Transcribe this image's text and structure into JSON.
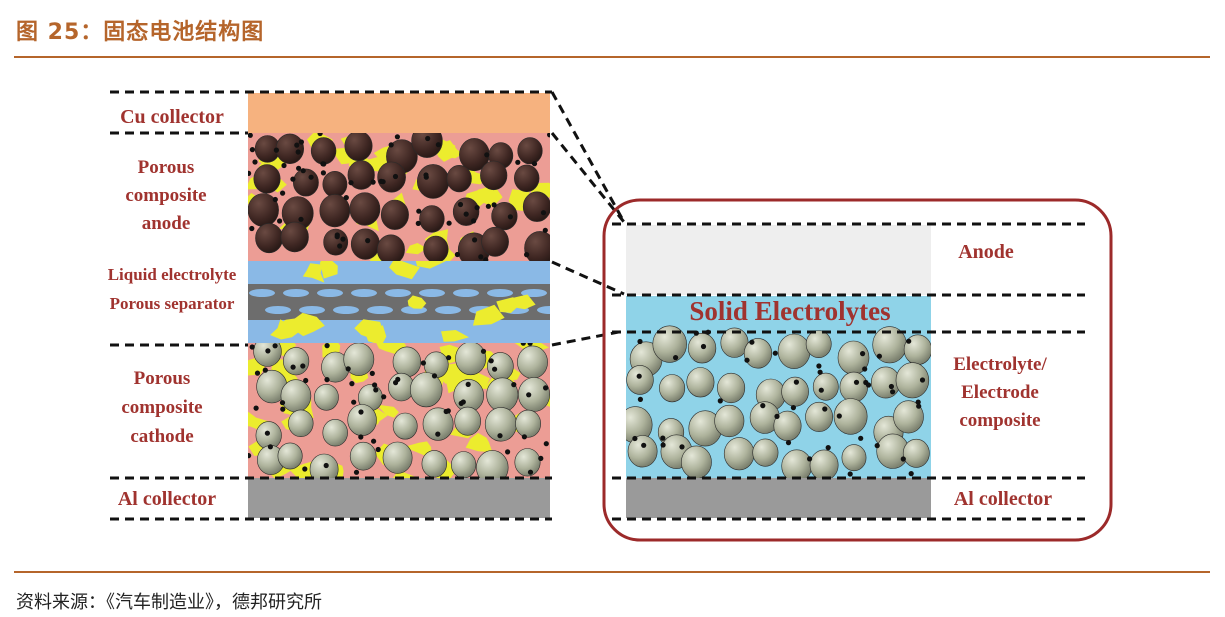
{
  "figure": {
    "title": "图 25：固态电池结构图",
    "source": "资料来源：《汽车制造业》，德邦研究所"
  },
  "left_stack": {
    "cu_collector": "Cu collector",
    "anode_label": [
      "Porous",
      "composite",
      "anode"
    ],
    "liquid_electrolyte": "Liquid electrolyte",
    "porous_separator": "Porous separator",
    "cathode_label": [
      "Porous",
      "composite",
      "cathode"
    ],
    "al_collector": "Al collector"
  },
  "right_stack": {
    "anode": "Anode",
    "solid_electrolytes": "Solid Electrolytes",
    "composite_label": [
      "Electrolyte/",
      "Electrode",
      "composite"
    ],
    "al_collector": "Al collector"
  },
  "colors": {
    "title": "#b5652b",
    "label": "#a0332f",
    "cu_collector": "#f6b27f",
    "anode_matrix": "#ec9d95",
    "anode_particle": "#4a2f2a",
    "binder_yellow": "#ecec2e",
    "separator_blue": "#8ab9e6",
    "separator_grey": "#6d6d6d",
    "al_collector": "#9a9a9a",
    "solid_electrolyte": "#8fd3e8",
    "cathode_particle": "#a8ad96",
    "right_anode": "#eeeeee",
    "frame": "#9c2a2a"
  }
}
